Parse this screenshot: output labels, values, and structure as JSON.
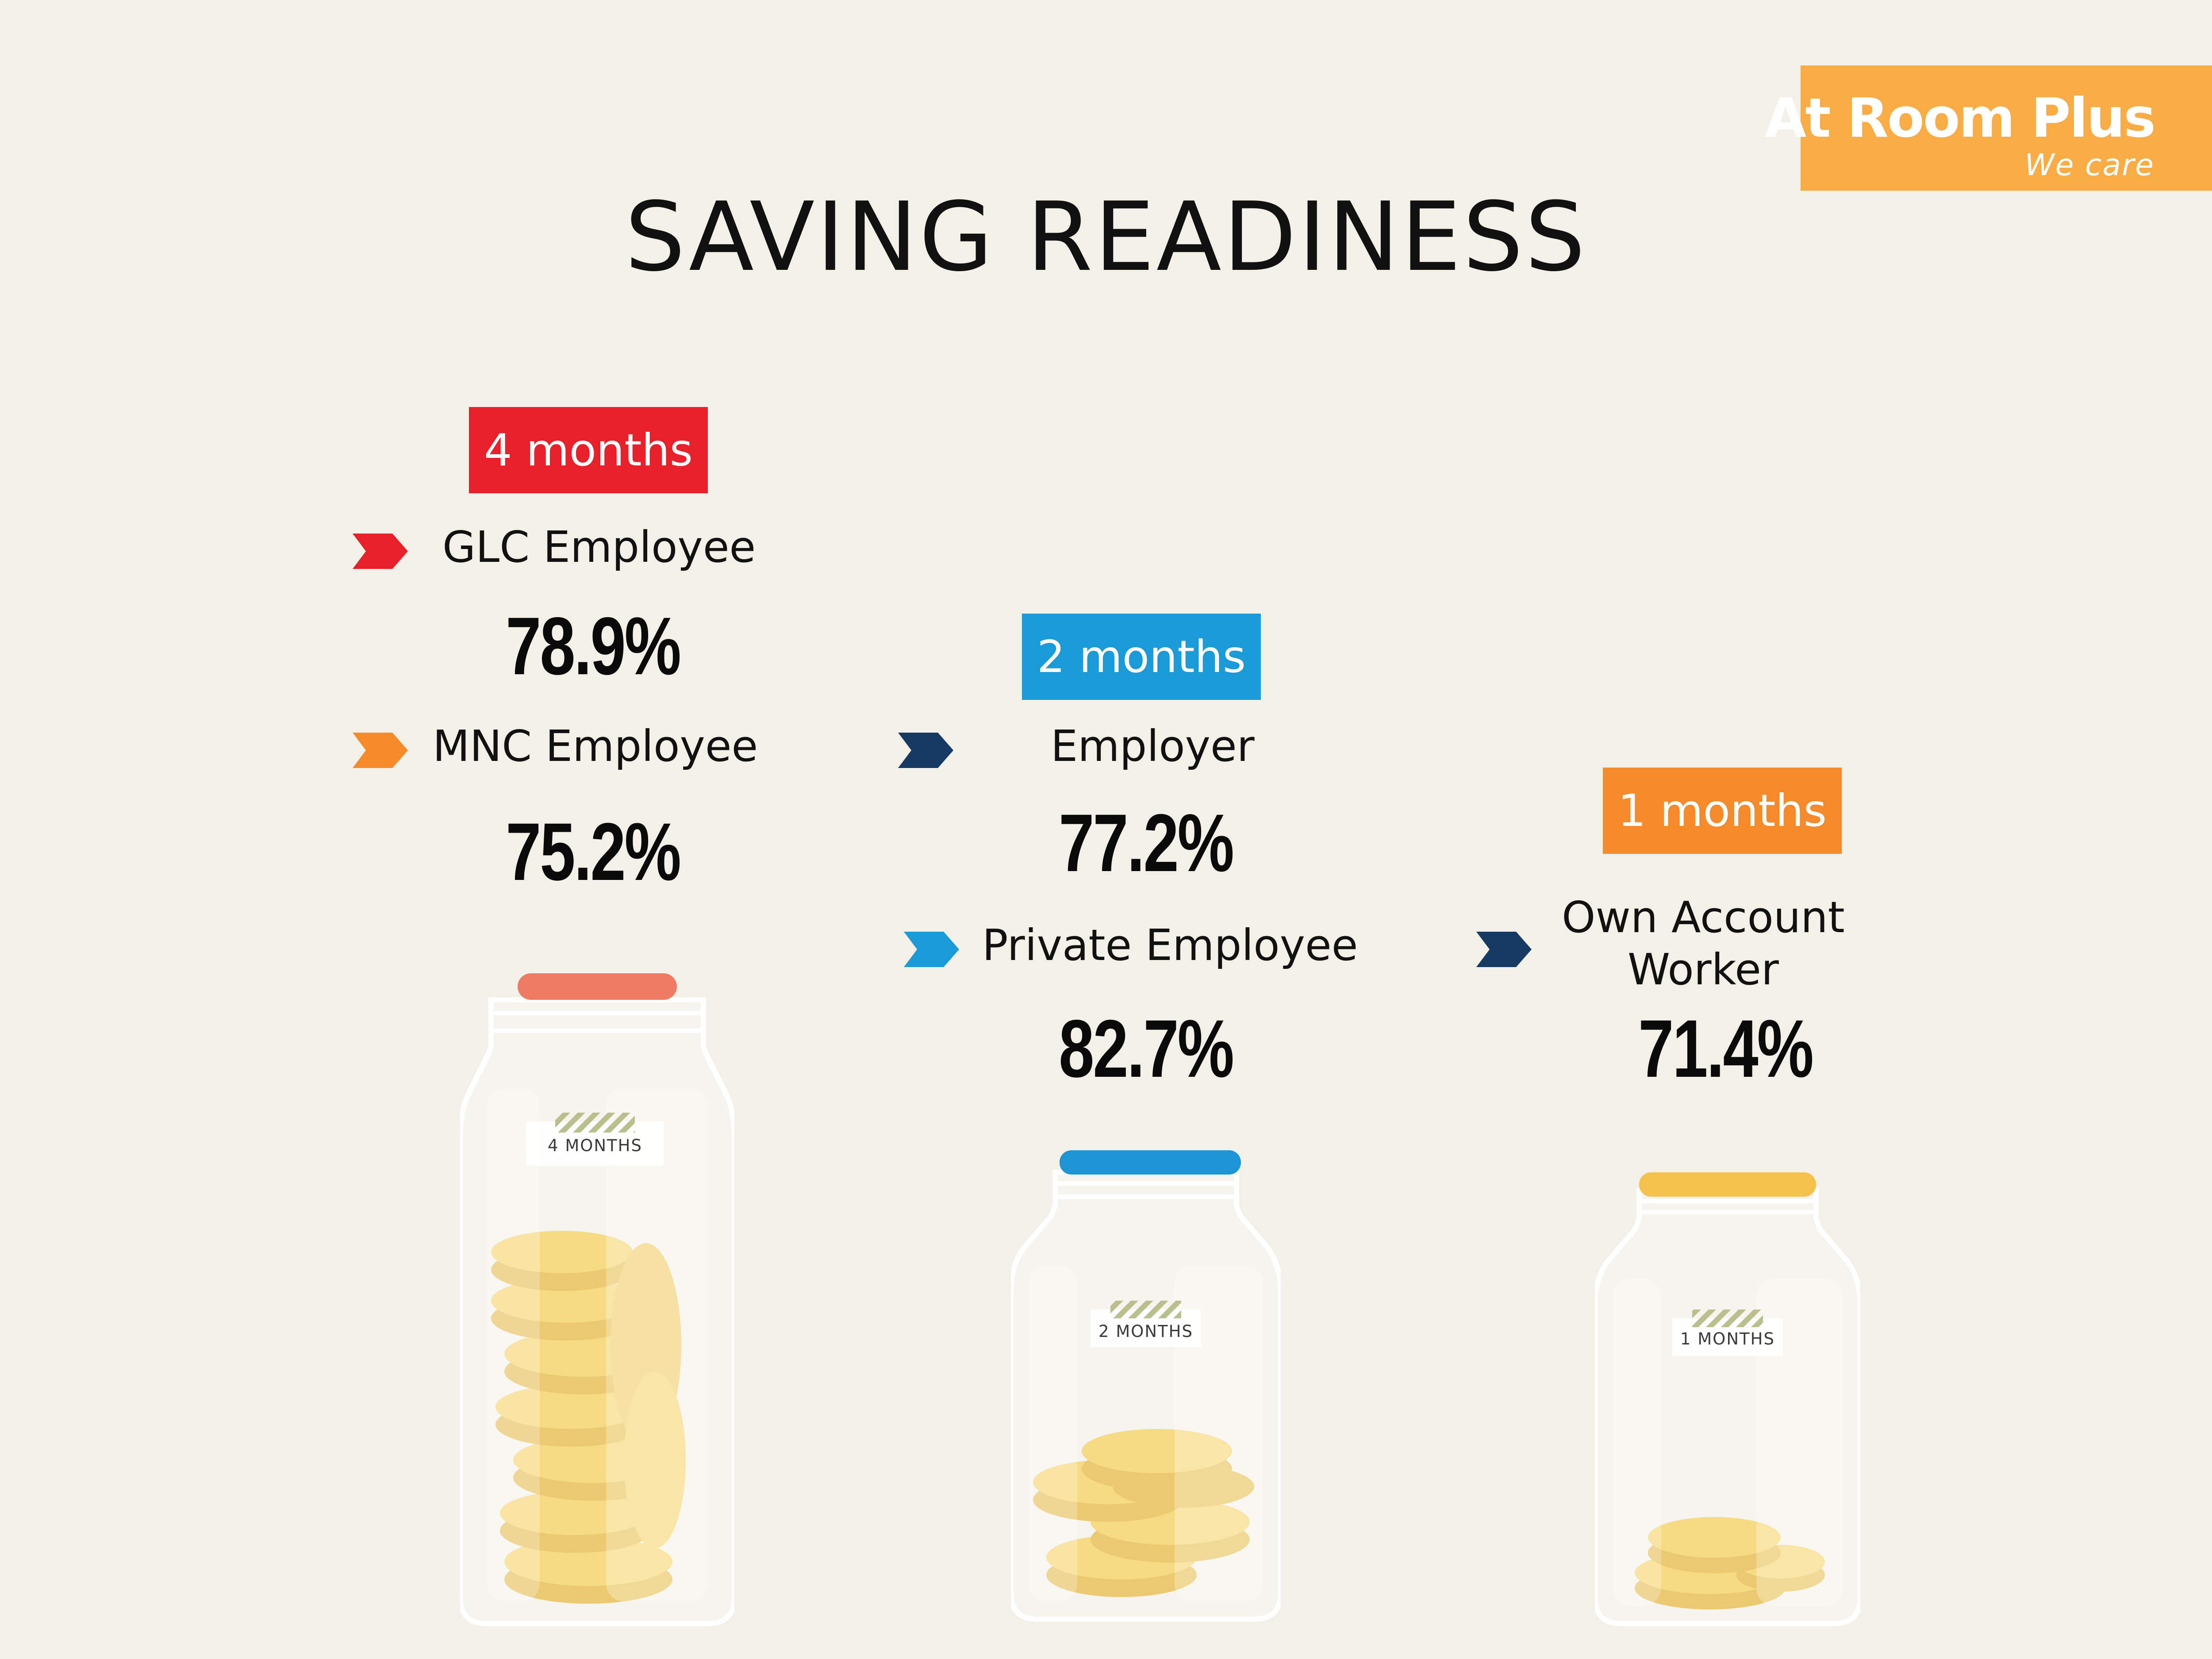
{
  "brand": {
    "name": "At Room Plus",
    "tagline": "We care",
    "color": "#f9ac44"
  },
  "title": "SAVING READINESS",
  "colors": {
    "red": "#e8202a",
    "orange": "#f58a2a",
    "blue": "#1a9ad6",
    "navy": "#163a63",
    "background": "#f3f0e8"
  },
  "groups": [
    {
      "tag": "4 months",
      "tag_color": "#e8202a",
      "jar_label": "4 MONTHS",
      "lid_color": "#ef7b62",
      "coin_level": 4,
      "items": [
        {
          "icon": "chevron-right-icon",
          "icon_color": "#e8202a",
          "label": "GLC Employee",
          "value": "78.9%"
        },
        {
          "icon": "chevron-right-icon",
          "icon_color": "#f58a2a",
          "label": "MNC Employee",
          "value": "75.2%"
        }
      ]
    },
    {
      "tag": "2 months",
      "tag_color": "#1a9ad6",
      "jar_label": "2 MONTHS",
      "lid_color": "#1d95d4",
      "coin_level": 2,
      "items": [
        {
          "icon": "chevron-right-icon",
          "icon_color": "#163a63",
          "label": "Employer",
          "value": "77.2%"
        },
        {
          "icon": "chevron-right-icon",
          "icon_color": "#1a9ad6",
          "label": "Private Employee",
          "value": "82.7%"
        }
      ]
    },
    {
      "tag": "1 months",
      "tag_color": "#f58a2a",
      "jar_label": "1 MONTHS",
      "lid_color": "#f4c24a",
      "coin_level": 1,
      "items": [
        {
          "icon": "chevron-right-icon",
          "icon_color": "#163a63",
          "label_line1": "Own Account",
          "label_line2": "Worker",
          "value": "71.4%"
        }
      ]
    }
  ]
}
